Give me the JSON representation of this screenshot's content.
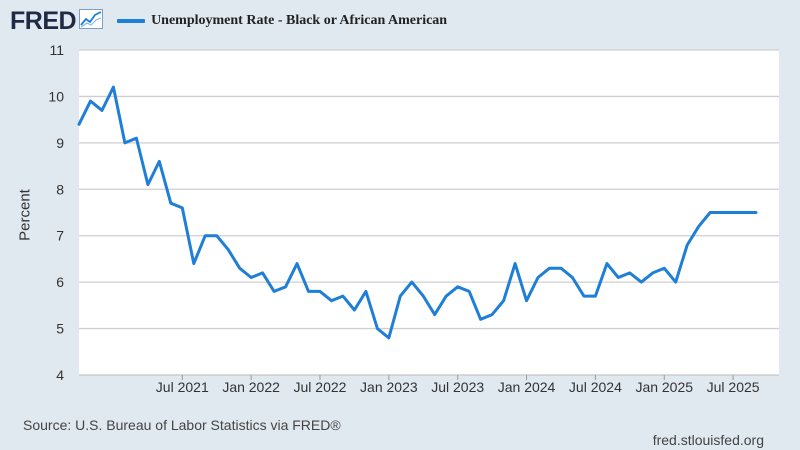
{
  "brand": {
    "logo_text": "FRED",
    "icon": "line-chart-icon"
  },
  "chart_data": {
    "type": "line",
    "series": [
      {
        "name": "Unemployment Rate - Black or African American",
        "color": "#1f7fd6",
        "x": [
          "2020-10",
          "2020-11",
          "2020-12",
          "2021-01",
          "2021-02",
          "2021-03",
          "2021-04",
          "2021-05",
          "2021-06",
          "2021-07",
          "2021-08",
          "2021-09",
          "2021-10",
          "2021-11",
          "2021-12",
          "2022-01",
          "2022-02",
          "2022-03",
          "2022-04",
          "2022-05",
          "2022-06",
          "2022-07",
          "2022-08",
          "2022-09",
          "2022-10",
          "2022-11",
          "2022-12",
          "2023-01",
          "2023-02",
          "2023-03",
          "2023-04",
          "2023-05",
          "2023-06",
          "2023-07",
          "2023-08",
          "2023-09",
          "2023-10",
          "2023-11",
          "2023-12",
          "2024-01",
          "2024-02",
          "2024-03",
          "2024-04",
          "2024-05",
          "2024-06",
          "2024-07",
          "2024-08",
          "2024-09",
          "2024-10",
          "2024-11",
          "2024-12",
          "2025-01",
          "2025-02",
          "2025-03",
          "2025-04",
          "2025-05",
          "2025-06",
          "2025-07",
          "2025-08",
          "2025-09"
        ],
        "values": [
          9.4,
          9.9,
          9.7,
          10.2,
          9.0,
          9.1,
          8.1,
          8.6,
          7.7,
          7.6,
          6.4,
          7.0,
          7.0,
          6.7,
          6.3,
          6.1,
          6.2,
          5.8,
          5.9,
          6.4,
          5.8,
          5.8,
          5.6,
          5.7,
          5.4,
          5.8,
          5.0,
          4.8,
          5.7,
          6.0,
          5.7,
          5.3,
          5.7,
          5.9,
          5.8,
          5.2,
          5.3,
          5.6,
          6.4,
          5.6,
          6.1,
          6.3,
          6.3,
          6.1,
          5.7,
          5.7,
          6.4,
          6.1,
          6.2,
          6.0,
          6.2,
          6.3,
          6.0,
          6.8,
          7.2,
          7.5,
          7.5,
          7.5,
          7.5,
          7.5
        ]
      }
    ],
    "ylabel": "Percent",
    "xlabel": "",
    "ylim": [
      4,
      11
    ],
    "y_ticks": [
      4,
      5,
      6,
      7,
      8,
      9,
      10,
      11
    ],
    "x_ticks": [
      {
        "x": "2021-07",
        "label": "Jul 2021"
      },
      {
        "x": "2022-01",
        "label": "Jan 2022"
      },
      {
        "x": "2022-07",
        "label": "Jul 2022"
      },
      {
        "x": "2023-01",
        "label": "Jan 2023"
      },
      {
        "x": "2023-07",
        "label": "Jul 2023"
      },
      {
        "x": "2024-01",
        "label": "Jan 2024"
      },
      {
        "x": "2024-07",
        "label": "Jul 2024"
      },
      {
        "x": "2025-01",
        "label": "Jan 2025"
      },
      {
        "x": "2025-07",
        "label": "Jul 2025"
      }
    ],
    "grid": true,
    "legend": "top-left"
  },
  "footer": {
    "source": "Source: U.S. Bureau of Labor Statistics via FRED®",
    "site": "fred.stlouisfed.org"
  }
}
